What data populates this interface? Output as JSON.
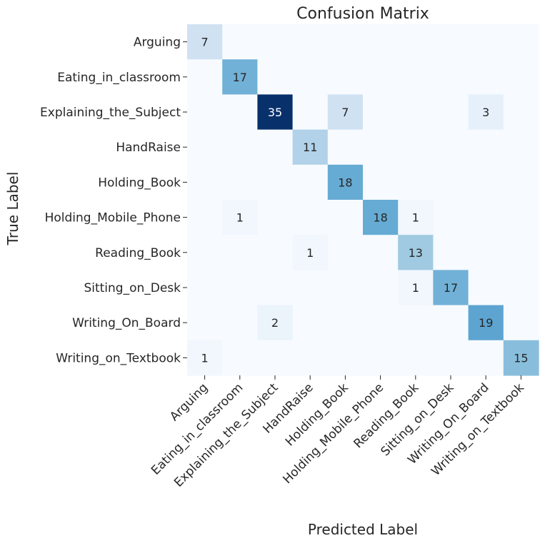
{
  "chart_data": {
    "type": "heatmap",
    "title": "Confusion Matrix",
    "xlabel": "Predicted Label",
    "ylabel": "True Label",
    "colormap": "Blues",
    "vmin": 0,
    "vmax": 35,
    "colorbar": false,
    "annotate_zeros": false,
    "rows": [
      "Arguing",
      "Eating_in_classroom",
      "Explaining_the_Subject",
      "HandRaise",
      "Holding_Book",
      "Holding_Mobile_Phone",
      "Reading_Book",
      "Sitting_on_Desk",
      "Writing_On_Board",
      "Writing_on_Textbook"
    ],
    "columns": [
      "Arguing",
      "Eating_in_classroom",
      "Explaining_the_Subject",
      "HandRaise",
      "Holding_Book",
      "Holding_Mobile_Phone",
      "Reading_Book",
      "Sitting_on_Desk",
      "Writing_On_Board",
      "Writing_on_Textbook"
    ],
    "matrix": [
      [
        7,
        0,
        0,
        0,
        0,
        0,
        0,
        0,
        0,
        0
      ],
      [
        0,
        17,
        0,
        0,
        0,
        0,
        0,
        0,
        0,
        0
      ],
      [
        0,
        0,
        35,
        0,
        7,
        0,
        0,
        0,
        3,
        0
      ],
      [
        0,
        0,
        0,
        11,
        0,
        0,
        0,
        0,
        0,
        0
      ],
      [
        0,
        0,
        0,
        0,
        18,
        0,
        0,
        0,
        0,
        0
      ],
      [
        0,
        1,
        0,
        0,
        0,
        18,
        1,
        0,
        0,
        0
      ],
      [
        0,
        0,
        0,
        1,
        0,
        0,
        13,
        0,
        0,
        0
      ],
      [
        0,
        0,
        0,
        0,
        0,
        0,
        1,
        17,
        0,
        0
      ],
      [
        0,
        0,
        2,
        0,
        0,
        0,
        0,
        0,
        19,
        0
      ],
      [
        1,
        0,
        0,
        0,
        0,
        0,
        0,
        0,
        0,
        15
      ]
    ]
  }
}
